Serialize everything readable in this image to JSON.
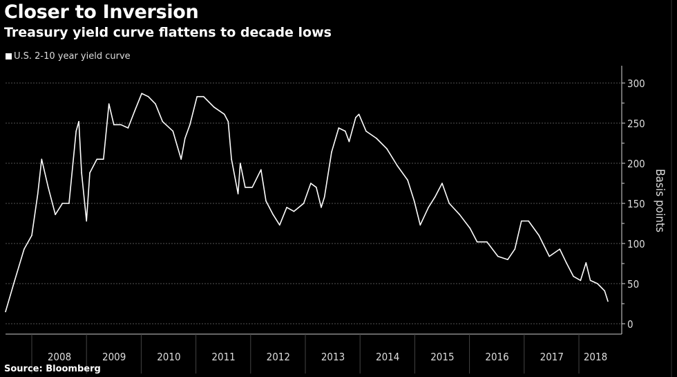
{
  "chart_data": {
    "type": "line",
    "title": "Closer to Inversion",
    "subtitle": "Treasury yield curve flattens to decade lows",
    "ylabel": "Basis points",
    "xlabel": "",
    "source": "Source: Bloomberg",
    "legend_position": "top-left",
    "grid": true,
    "ylim": [
      0,
      300
    ],
    "yticks": [
      0,
      50,
      100,
      150,
      200,
      250,
      300
    ],
    "xticks": [
      "2008",
      "2009",
      "2010",
      "2011",
      "2012",
      "2013",
      "2014",
      "2015",
      "2016",
      "2017",
      "2018"
    ],
    "colors": {
      "background": "#000000",
      "line": "#ffffff",
      "grid": "#555555"
    },
    "series": [
      {
        "name": "U.S. 2-10 year yield curve",
        "x": [
          2007.52,
          2007.67,
          2007.86,
          2008.0,
          2008.11,
          2008.18,
          2008.3,
          2008.43,
          2008.56,
          2008.68,
          2008.81,
          2008.86,
          2008.91,
          2009.0,
          2009.06,
          2009.19,
          2009.31,
          2009.41,
          2009.5,
          2009.63,
          2009.76,
          2009.88,
          2010.01,
          2010.13,
          2010.26,
          2010.39,
          2010.58,
          2010.73,
          2010.8,
          2010.89,
          2011.02,
          2011.14,
          2011.33,
          2011.52,
          2011.59,
          2011.65,
          2011.77,
          2011.81,
          2011.9,
          2012.03,
          2012.19,
          2012.28,
          2012.41,
          2012.53,
          2012.66,
          2012.79,
          2012.97,
          2013.1,
          2013.2,
          2013.29,
          2013.35,
          2013.48,
          2013.61,
          2013.73,
          2013.8,
          2013.92,
          2013.98,
          2014.11,
          2014.3,
          2014.49,
          2014.68,
          2014.87,
          2014.99,
          2015.1,
          2015.25,
          2015.37,
          2015.5,
          2015.63,
          2015.82,
          2016.01,
          2016.14,
          2016.32,
          2016.52,
          2016.7,
          2016.83,
          2016.95,
          2017.08,
          2017.27,
          2017.46,
          2017.65,
          2017.77,
          2017.9,
          2018.03,
          2018.13,
          2018.21,
          2018.34,
          2018.47,
          2018.53
        ],
        "y": [
          15,
          50,
          93,
          110,
          162,
          205,
          170,
          136,
          150,
          150,
          240,
          252,
          188,
          128,
          188,
          205,
          205,
          274,
          248,
          248,
          244,
          265,
          287,
          283,
          274,
          252,
          240,
          205,
          231,
          248,
          283,
          283,
          270,
          261,
          252,
          205,
          162,
          200,
          170,
          170,
          192,
          153,
          136,
          123,
          145,
          140,
          150,
          175,
          170,
          145,
          158,
          214,
          244,
          240,
          227,
          257,
          261,
          240,
          231,
          218,
          197,
          179,
          153,
          123,
          145,
          158,
          175,
          150,
          136,
          119,
          102,
          102,
          84,
          80,
          93,
          128,
          128,
          110,
          84,
          93,
          76,
          59,
          54,
          76,
          54,
          50,
          41,
          28
        ]
      }
    ]
  }
}
